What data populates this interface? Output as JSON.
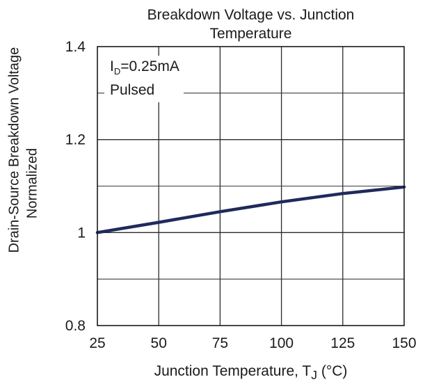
{
  "chart_data": {
    "type": "line",
    "title_line1": "Breakdown Voltage vs. Junction",
    "title_line2": "Temperature",
    "xlabel": "Junction Temperature, T",
    "xlabel_sub": "J",
    "xlabel_unit": " (°C)",
    "ylabel_line1": "Drain-Source Breakdown Voltage",
    "ylabel_line2": "Normalized",
    "xlim": [
      25,
      150
    ],
    "ylim": [
      0.8,
      1.4
    ],
    "x_ticks": [
      25,
      50,
      75,
      100,
      125,
      150
    ],
    "x_tick_labels": [
      "25",
      "50",
      "75",
      "100",
      "125",
      "150"
    ],
    "y_ticks": [
      0.8,
      1,
      1.2,
      1.4
    ],
    "y_tick_labels": [
      "0.8",
      "1",
      "1.2",
      "1.4"
    ],
    "y_minor_grid": [
      0.9,
      1.1,
      1.3
    ],
    "grid": true,
    "annotation": {
      "line1_prefix": "I",
      "line1_sub": "D",
      "line1_suffix": "=0.25mA",
      "line2": "Pulsed"
    },
    "series": [
      {
        "color": "#1f2a5c",
        "x": [
          25,
          50,
          75,
          100,
          125,
          150
        ],
        "y": [
          1.0,
          1.022,
          1.045,
          1.066,
          1.084,
          1.098
        ]
      }
    ]
  }
}
